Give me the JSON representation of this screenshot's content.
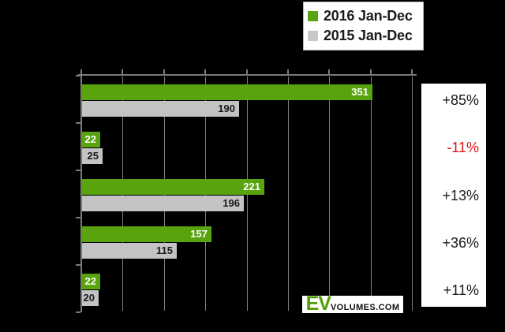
{
  "legend": {
    "items": [
      {
        "label": "2016 Jan-Dec",
        "color": "#58a30e"
      },
      {
        "label": "2015 Jan-Dec",
        "color": "#c8c8c8"
      }
    ]
  },
  "chart_data": {
    "type": "bar",
    "orientation": "horizontal",
    "title": "",
    "categories": [
      "",
      "",
      "",
      "",
      ""
    ],
    "series": [
      {
        "name": "2016 Jan-Dec",
        "color": "#58a30e",
        "label_color": "#ffffff",
        "values": [
          351,
          22,
          221,
          157,
          22
        ]
      },
      {
        "name": "2015 Jan-Dec",
        "color": "#c3c3c3",
        "label_color": "#1a1a1a",
        "values": [
          190,
          25,
          196,
          115,
          20
        ]
      }
    ],
    "changes": [
      {
        "label": "+85%",
        "color": "#1a1a1a"
      },
      {
        "label": "-11%",
        "color": "#e61414"
      },
      {
        "label": "+13%",
        "color": "#1a1a1a"
      },
      {
        "label": "+36%",
        "color": "#1a1a1a"
      },
      {
        "label": "+11%",
        "color": "#1a1a1a"
      }
    ],
    "xlim": [
      0,
      400
    ],
    "x_tick_interval": 50,
    "grid": true,
    "gridline_color": "#7e7e7e",
    "axis_color": "#7a7a7a",
    "background": "#000000",
    "legend_position": "top-right",
    "bar_labels_shown": true
  },
  "watermark": {
    "ev": "EV",
    "volumes": "VOLUMES.COM"
  }
}
